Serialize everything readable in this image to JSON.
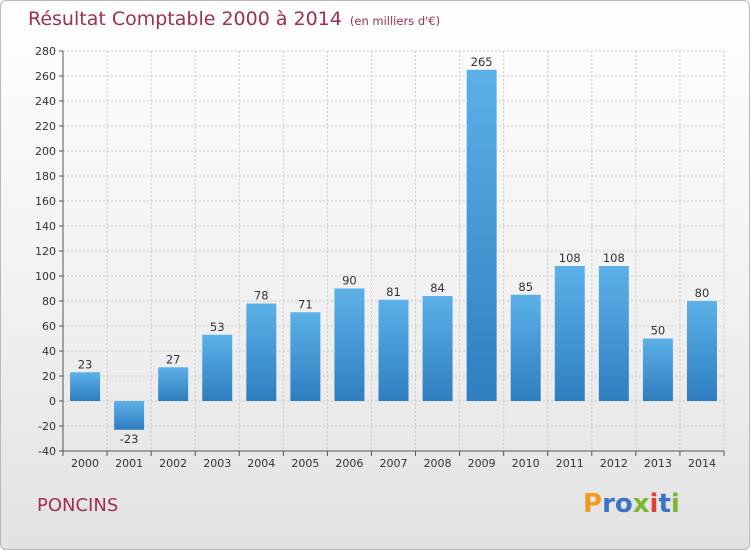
{
  "header": {
    "title": "Résultat Comptable 2000 à 2014",
    "subtitle": "(en milliers d'€)"
  },
  "footer": {
    "commune": "PONCINS",
    "brand": "Proxiti",
    "brand_colors": [
      "#f29a1f",
      "#3a74c7",
      "#3a74c7",
      "#7ab733",
      "#e0413c",
      "#3a74c7",
      "#7ab733"
    ]
  },
  "chart_data": {
    "type": "bar",
    "title": "Résultat Comptable 2000 à 2014",
    "subtitle": "(en milliers d'€)",
    "categories": [
      "2000",
      "2001",
      "2002",
      "2003",
      "2004",
      "2005",
      "2006",
      "2007",
      "2008",
      "2009",
      "2010",
      "2011",
      "2012",
      "2013",
      "2014"
    ],
    "values": [
      23,
      -23,
      27,
      53,
      78,
      71,
      90,
      81,
      84,
      265,
      85,
      108,
      108,
      50,
      80
    ],
    "ylim": [
      -40,
      280
    ],
    "yticks": [
      -40,
      -20,
      0,
      20,
      40,
      60,
      80,
      100,
      120,
      140,
      160,
      180,
      200,
      220,
      240,
      260,
      280
    ],
    "grid": true,
    "bar_color_top": "#5cb1e8",
    "bar_color_bottom": "#2f7ec0",
    "xlabel": "",
    "ylabel": ""
  }
}
